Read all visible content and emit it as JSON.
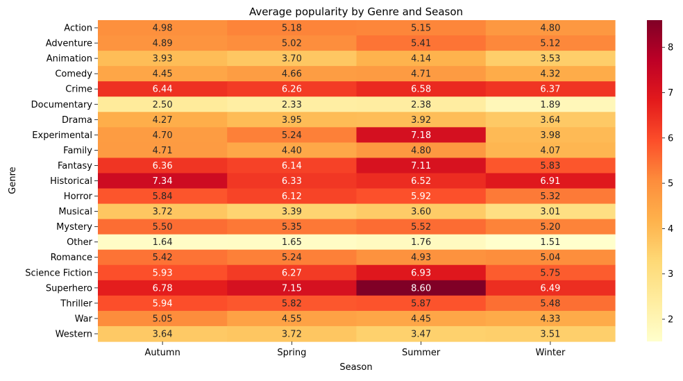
{
  "chart_data": {
    "type": "heatmap",
    "title": "Average popularity by Genre and Season",
    "xlabel": "Season",
    "ylabel": "Genre",
    "x": [
      "Autumn",
      "Spring",
      "Summer",
      "Winter"
    ],
    "y": [
      "Action",
      "Adventure",
      "Animation",
      "Comedy",
      "Crime",
      "Documentary",
      "Drama",
      "Experimental",
      "Family",
      "Fantasy",
      "Historical",
      "Horror",
      "Musical",
      "Mystery",
      "Other",
      "Romance",
      "Science Fiction",
      "Superhero",
      "Thriller",
      "War",
      "Western"
    ],
    "values": [
      [
        4.98,
        5.18,
        5.15,
        4.8
      ],
      [
        4.89,
        5.02,
        5.41,
        5.12
      ],
      [
        3.93,
        3.7,
        4.14,
        3.53
      ],
      [
        4.45,
        4.66,
        4.71,
        4.32
      ],
      [
        6.44,
        6.26,
        6.58,
        6.37
      ],
      [
        2.5,
        2.33,
        2.38,
        1.89
      ],
      [
        4.27,
        3.95,
        3.92,
        3.64
      ],
      [
        4.7,
        5.24,
        7.18,
        3.98
      ],
      [
        4.71,
        4.4,
        4.8,
        4.07
      ],
      [
        6.36,
        6.14,
        7.11,
        5.83
      ],
      [
        7.34,
        6.33,
        6.52,
        6.91
      ],
      [
        5.84,
        6.12,
        5.92,
        5.32
      ],
      [
        3.72,
        3.39,
        3.6,
        3.01
      ],
      [
        5.5,
        5.35,
        5.52,
        5.2
      ],
      [
        1.64,
        1.65,
        1.76,
        1.51
      ],
      [
        5.42,
        5.24,
        4.93,
        5.04
      ],
      [
        5.93,
        6.27,
        6.93,
        5.75
      ],
      [
        6.78,
        7.15,
        8.6,
        6.49
      ],
      [
        5.94,
        5.82,
        5.87,
        5.48
      ],
      [
        5.05,
        4.55,
        4.45,
        4.33
      ],
      [
        3.64,
        3.72,
        3.47,
        3.51
      ]
    ],
    "value_format": "2 decimals",
    "colormap": "YlOrRd",
    "vmin": 1.51,
    "vmax": 8.6,
    "colorbar_ticks": [
      2,
      3,
      4,
      5,
      6,
      7,
      8
    ],
    "grid": false
  }
}
